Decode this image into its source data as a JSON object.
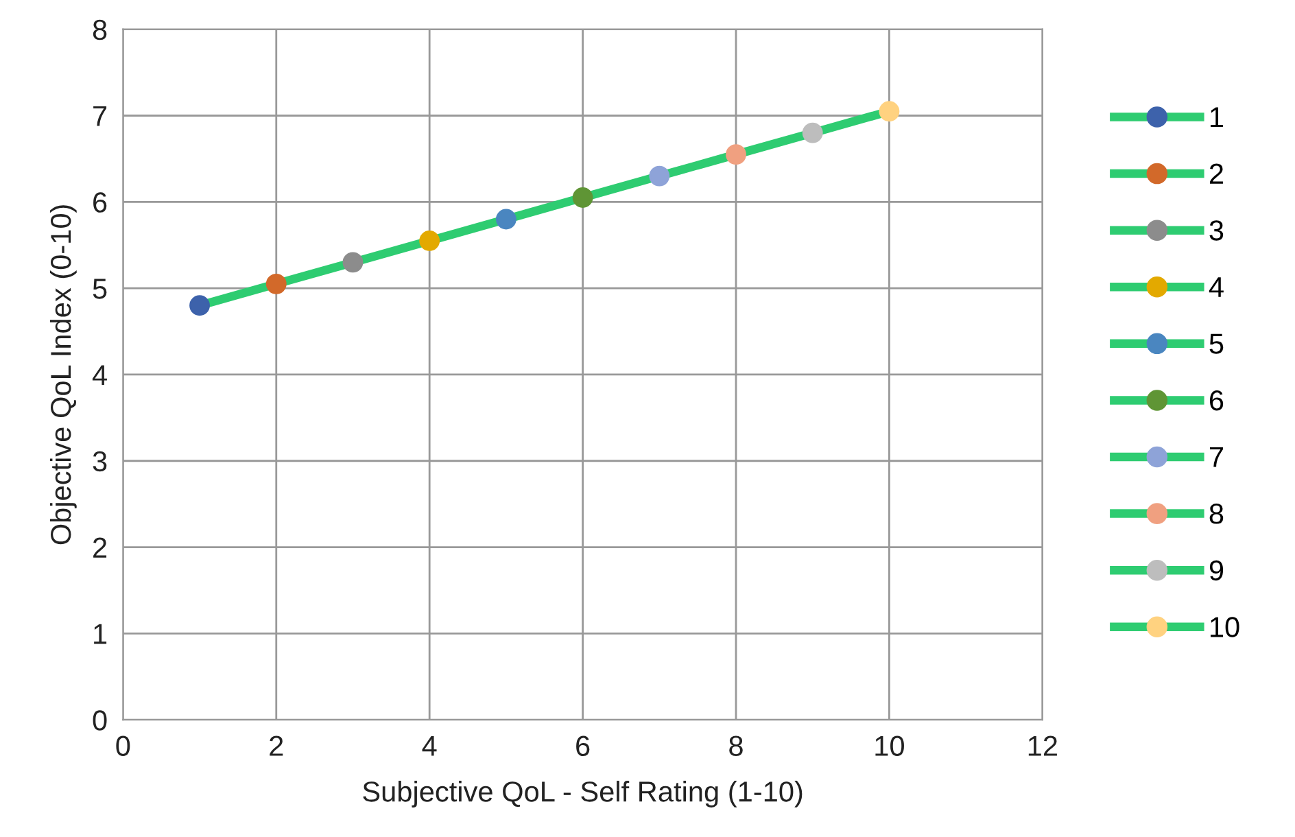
{
  "chart_data": {
    "type": "line",
    "xlabel": "Subjective QoL - Self Rating (1-10)",
    "ylabel": "Objective QoL Index (0-10)",
    "xlim": [
      0,
      12
    ],
    "xticks": [
      0,
      2,
      4,
      6,
      8,
      10,
      12
    ],
    "ylim": [
      0,
      8
    ],
    "yticks": [
      0,
      1,
      2,
      3,
      4,
      5,
      6,
      7,
      8
    ],
    "grid": true,
    "legend": "right",
    "marker": "circle",
    "line_style": "solid",
    "series": [
      {
        "marker": "none",
        "color": "#2ecc71",
        "x": [
          1,
          2,
          3,
          4,
          5,
          6,
          7,
          8,
          9,
          10
        ],
        "values": [
          4.8,
          5.05,
          5.3,
          5.55,
          5.8,
          6.05,
          6.3,
          6.55,
          6.8,
          7.05
        ]
      },
      {
        "type": "scatter",
        "name": "1",
        "color": "#3d62ab",
        "x": [
          1
        ],
        "values": [
          4.8
        ]
      },
      {
        "type": "scatter",
        "name": "2",
        "color": "#d2692a",
        "x": [
          2
        ],
        "values": [
          5.05
        ]
      },
      {
        "type": "scatter",
        "name": "3",
        "color": "#8c8c8c",
        "x": [
          3
        ],
        "values": [
          5.3
        ]
      },
      {
        "type": "scatter",
        "name": "4",
        "color": "#e3a900",
        "x": [
          4
        ],
        "values": [
          5.55
        ]
      },
      {
        "type": "scatter",
        "name": "5",
        "color": "#4a86c0",
        "x": [
          5
        ],
        "values": [
          5.8
        ]
      },
      {
        "type": "scatter",
        "name": "6",
        "color": "#5f9535",
        "x": [
          6
        ],
        "values": [
          6.05
        ]
      },
      {
        "type": "scatter",
        "name": "7",
        "color": "#8ea3d8",
        "x": [
          7
        ],
        "values": [
          6.3
        ]
      },
      {
        "type": "scatter",
        "name": "8",
        "color": "#f0a080",
        "x": [
          8
        ],
        "values": [
          6.55
        ]
      },
      {
        "type": "scatter",
        "name": "9",
        "color": "#bdbdbd",
        "x": [
          9
        ],
        "values": [
          6.8
        ]
      },
      {
        "type": "scatter",
        "name": "10",
        "color": "#ffd280",
        "x": [
          10
        ],
        "values": [
          7.05
        ]
      }
    ]
  }
}
